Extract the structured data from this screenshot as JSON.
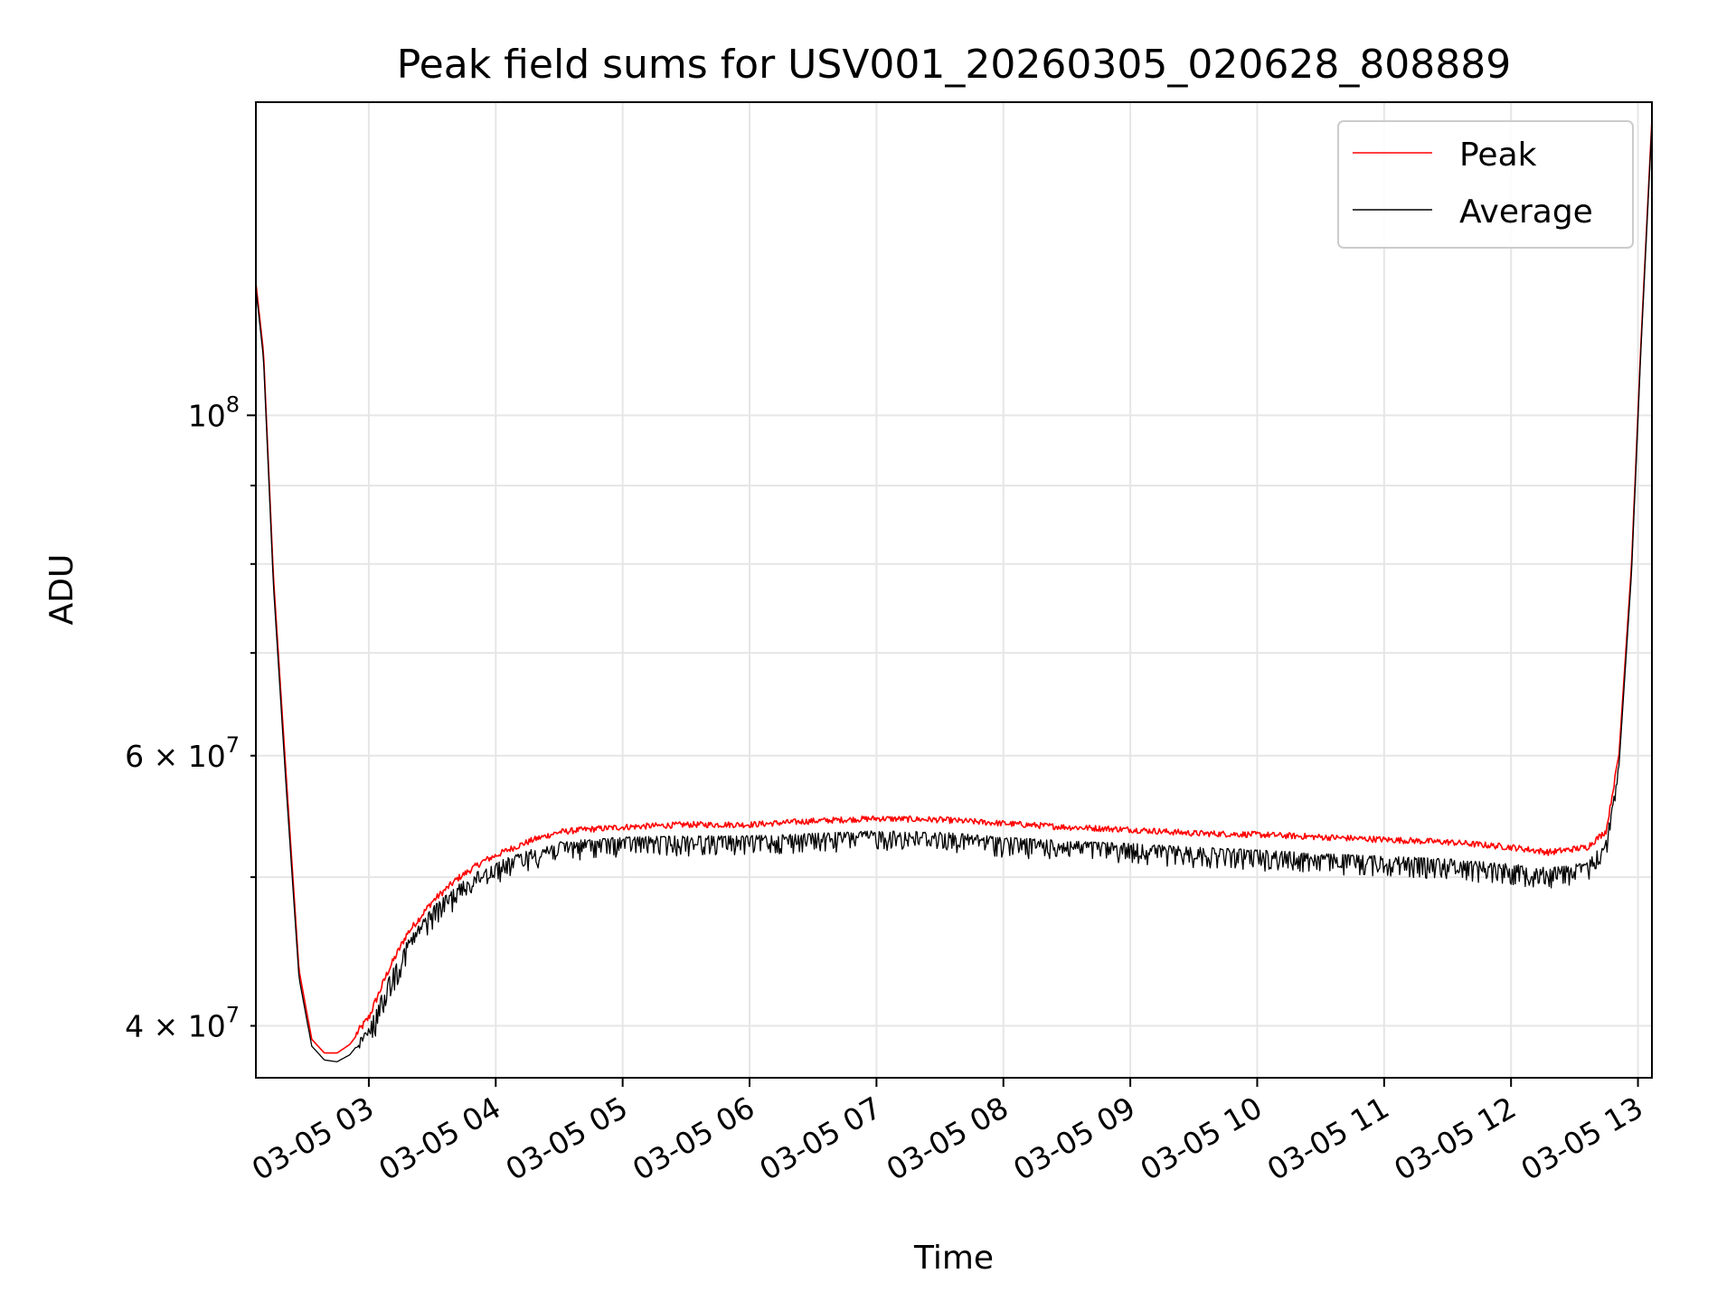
{
  "chart_data": {
    "type": "line",
    "title": "Peak field sums for USV001_20260305_020628_808889",
    "xlabel": "Time",
    "ylabel": "ADU",
    "yscale": "log",
    "ylim": [
      37000000,
      160000000
    ],
    "xlim": [
      2.11,
      13.11
    ],
    "grid": true,
    "legend_position": "top-right",
    "x_ticks": [
      {
        "value": 3,
        "label": "03-05 03"
      },
      {
        "value": 4,
        "label": "03-05 04"
      },
      {
        "value": 5,
        "label": "03-05 05"
      },
      {
        "value": 6,
        "label": "03-05 06"
      },
      {
        "value": 7,
        "label": "03-05 07"
      },
      {
        "value": 8,
        "label": "03-05 08"
      },
      {
        "value": 9,
        "label": "03-05 09"
      },
      {
        "value": 10,
        "label": "03-05 10"
      },
      {
        "value": 11,
        "label": "03-05 11"
      },
      {
        "value": 12,
        "label": "03-05 12"
      },
      {
        "value": 13,
        "label": "03-05 13"
      }
    ],
    "y_major_ticks": [
      {
        "value": 100000000,
        "base": "10",
        "exp": "8"
      }
    ],
    "y_minor_ticks": [
      {
        "value": 40000000,
        "coef": "4",
        "base": "10",
        "exp": "7"
      },
      {
        "value": 60000000,
        "coef": "6",
        "base": "10",
        "exp": "7"
      }
    ],
    "y_minor_unlabeled": [
      50000000,
      70000000,
      80000000,
      90000000
    ],
    "series": [
      {
        "name": "Peak",
        "color": "#ff0000",
        "x": [
          2.11,
          2.17,
          2.25,
          2.35,
          2.45,
          2.55,
          2.65,
          2.75,
          2.85,
          3.0,
          3.15,
          3.3,
          3.5,
          3.7,
          3.9,
          4.1,
          4.3,
          4.5,
          4.7,
          5.0,
          5.5,
          6.0,
          6.5,
          7.0,
          7.5,
          8.0,
          8.5,
          9.0,
          9.5,
          10.0,
          10.5,
          11.0,
          11.5,
          12.0,
          12.3,
          12.6,
          12.75,
          12.85,
          12.95,
          13.02,
          13.11
        ],
        "values": [
          122000000,
          110000000,
          78000000,
          58000000,
          43500000,
          39200000,
          38400000,
          38400000,
          38900000,
          40400000,
          43300000,
          45800000,
          48100000,
          49800000,
          51100000,
          52000000,
          52800000,
          53400000,
          53600000,
          53800000,
          54000000,
          54000000,
          54300000,
          54500000,
          54400000,
          54100000,
          53800000,
          53600000,
          53300000,
          53200000,
          53000000,
          52800000,
          52600000,
          52200000,
          51800000,
          52200000,
          53500000,
          60000000,
          80000000,
          110000000,
          156000000
        ],
        "noise": 500000
      },
      {
        "name": "Average",
        "color": "#000000",
        "x": [
          2.11,
          2.17,
          2.25,
          2.35,
          2.45,
          2.55,
          2.65,
          2.75,
          2.85,
          3.0,
          3.15,
          3.3,
          3.5,
          3.7,
          3.9,
          4.1,
          4.3,
          4.5,
          4.7,
          5.0,
          5.5,
          6.0,
          6.5,
          7.0,
          7.5,
          8.0,
          8.5,
          9.0,
          9.5,
          10.0,
          10.5,
          11.0,
          11.5,
          12.0,
          12.3,
          12.6,
          12.75,
          12.85,
          12.95,
          13.02,
          13.11
        ],
        "values": [
          121000000,
          109000000,
          77000000,
          57000000,
          43000000,
          38800000,
          38000000,
          37900000,
          38300000,
          39700000,
          42700000,
          45200000,
          47600000,
          49200000,
          50500000,
          51300000,
          52000000,
          52500000,
          52700000,
          52900000,
          53000000,
          53000000,
          53200000,
          53400000,
          53300000,
          52900000,
          52600000,
          52400000,
          52100000,
          51900000,
          51600000,
          51400000,
          51200000,
          50800000,
          50500000,
          50900000,
          52700000,
          59000000,
          79000000,
          109000000,
          155000000
        ],
        "noise": 1000000
      }
    ]
  }
}
